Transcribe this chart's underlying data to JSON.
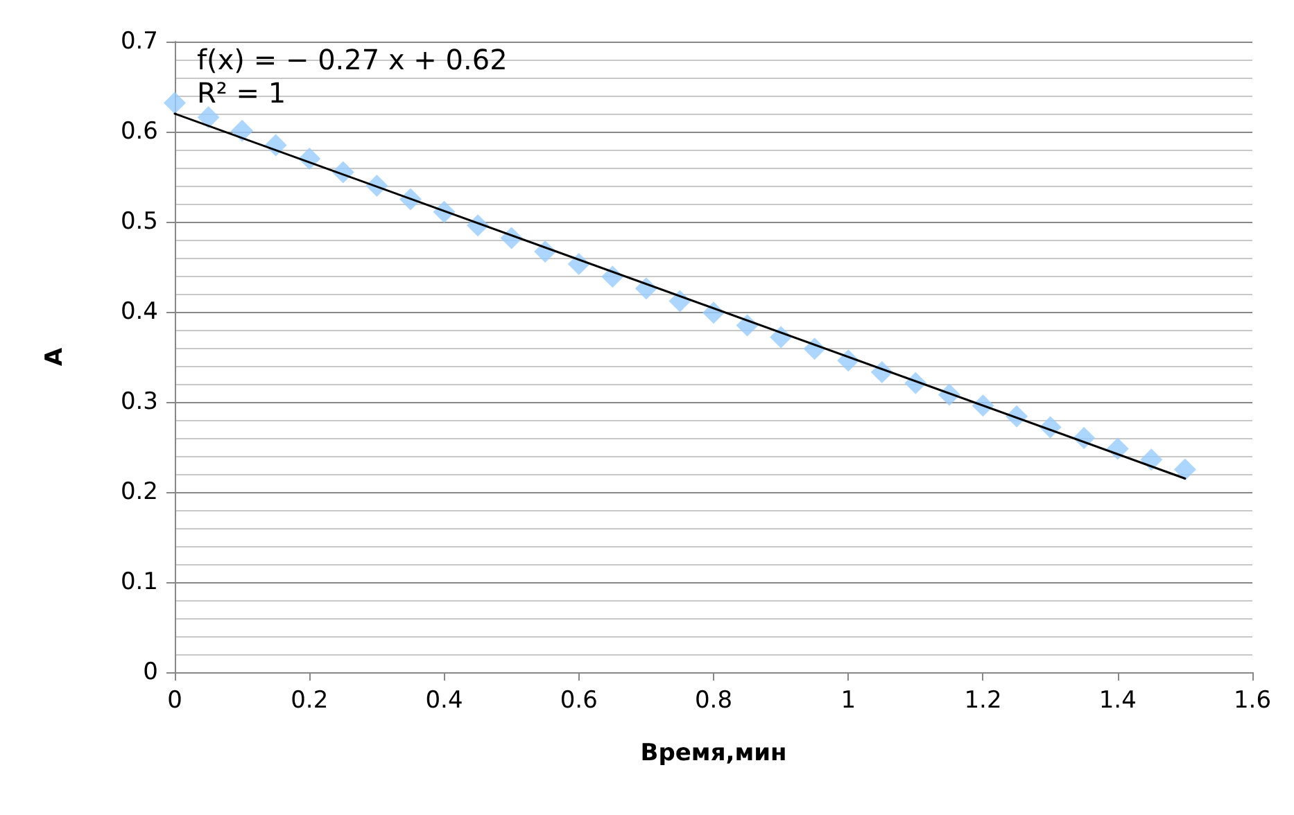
{
  "chart_data": {
    "type": "scatter",
    "xlabel": "Время,мин",
    "ylabel": "A",
    "xlim": [
      0,
      1.6
    ],
    "xticks": [
      0,
      0.2,
      0.4,
      0.6,
      0.8,
      1,
      1.2,
      1.4,
      1.6
    ],
    "ylim": [
      0,
      0.7
    ],
    "yticks": [
      0,
      0.1,
      0.2,
      0.3,
      0.4,
      0.5,
      0.6,
      0.7
    ],
    "grid": "y",
    "annotations": [
      "f(x) = − 0.27 x + 0.62",
      "R² = 1"
    ],
    "series": [
      {
        "color": "#99ccff",
        "marker": "diamond",
        "x": [
          0,
          0.05,
          0.1,
          0.15,
          0.2,
          0.25,
          0.3,
          0.35,
          0.4,
          0.45,
          0.5,
          0.55,
          0.6,
          0.65,
          0.7,
          0.75,
          0.8,
          0.85,
          0.9,
          0.95,
          1,
          1.05,
          1.1,
          1.15,
          1.2,
          1.25,
          1.3,
          1.35,
          1.4,
          1.45,
          1.5
        ],
        "values": [
          0.632,
          0.616,
          0.601,
          0.585,
          0.57,
          0.555,
          0.54,
          0.525,
          0.511,
          0.496,
          0.482,
          0.467,
          0.453,
          0.439,
          0.426,
          0.412,
          0.399,
          0.385,
          0.372,
          0.359,
          0.346,
          0.333,
          0.321,
          0.308,
          0.296,
          0.284,
          0.272,
          0.26,
          0.248,
          0.236,
          0.225
        ]
      },
      {
        "type": "line",
        "color": "#000000",
        "marker": "none",
        "line_style": "solid",
        "x": [
          0,
          1.5
        ],
        "values": [
          0.62,
          0.215
        ]
      }
    ]
  }
}
